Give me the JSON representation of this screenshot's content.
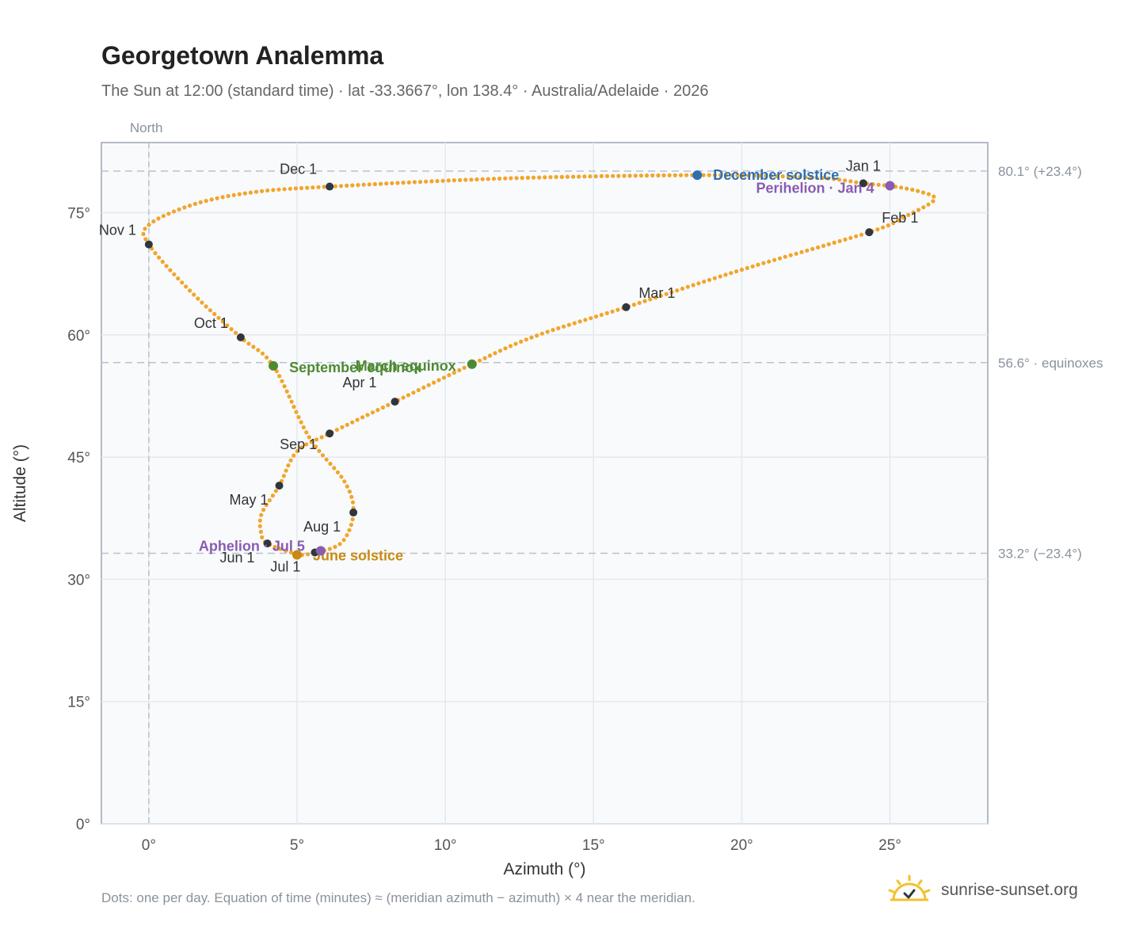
{
  "title": "Georgetown Analemma",
  "subtitle": "The Sun at 12:00 (standard time) · lat -33.3667°, lon 138.4° · Australia/Adelaide · 2026",
  "footnote": "Dots: one per day. Equation of time (minutes) ≈ (meridian azimuth − azimuth) × 4 near the meridian.",
  "brand": {
    "name": "sunrise-sunset.org",
    "icon": "sun-logo-icon"
  },
  "colors": {
    "curve": "#f2a52a",
    "month_marker": "#2f3640",
    "solstice_dec": "#2f6fb0",
    "solstice_jun": "#c98a12",
    "equinox": "#4e8a32",
    "perihelion": "#8a5cb0",
    "plot_bg": "#f8fafc",
    "grid": "#e4e9ef",
    "reference_line": "#b8c2cc"
  },
  "chart_data": {
    "type": "scatter",
    "xlabel": "Azimuth (°)",
    "ylabel": "Altitude (°)",
    "xlim": [
      -1.6,
      28.3
    ],
    "ylim": [
      0,
      83.6
    ],
    "xticks": [
      0,
      5,
      10,
      15,
      20,
      25
    ],
    "xtick_labels": [
      "0°",
      "5°",
      "10°",
      "15°",
      "20°",
      "25°"
    ],
    "yticks": [
      0,
      15,
      30,
      45,
      60,
      75
    ],
    "ytick_labels": [
      "0°",
      "15°",
      "30°",
      "45°",
      "60°",
      "75°"
    ],
    "grid": true,
    "meridian": {
      "x": 0,
      "label": "North"
    },
    "reference_lines": [
      {
        "y": 80.1,
        "label": "80.1° (+23.4°)"
      },
      {
        "y": 56.6,
        "label": "56.6° · equinoxes"
      },
      {
        "y": 33.2,
        "label": "33.2° (−23.4°)"
      }
    ],
    "analemma_path": [
      [
        25.0,
        78.3
      ],
      [
        26.0,
        77.6
      ],
      [
        26.5,
        76.6
      ],
      [
        25.5,
        74.5
      ],
      [
        24.3,
        72.6
      ],
      [
        20.0,
        68.0
      ],
      [
        16.1,
        63.4
      ],
      [
        13.0,
        59.8
      ],
      [
        10.9,
        56.4
      ],
      [
        8.3,
        51.8
      ],
      [
        6.1,
        47.9
      ],
      [
        5.0,
        45.7
      ],
      [
        4.4,
        41.5
      ],
      [
        3.8,
        38.0
      ],
      [
        3.8,
        35.5
      ],
      [
        4.0,
        34.4
      ],
      [
        5.0,
        33.1
      ],
      [
        5.5,
        33.2
      ],
      [
        6.5,
        34.5
      ],
      [
        6.9,
        38.2
      ],
      [
        6.6,
        42.0
      ],
      [
        5.4,
        47.5
      ],
      [
        4.2,
        56.2
      ],
      [
        3.1,
        59.7
      ],
      [
        1.5,
        65.0
      ],
      [
        0.0,
        71.1
      ],
      [
        0.0,
        73.5
      ],
      [
        1.5,
        76.0
      ],
      [
        3.5,
        77.5
      ],
      [
        6.1,
        78.2
      ],
      [
        12.0,
        79.2
      ],
      [
        18.5,
        79.6
      ],
      [
        22.5,
        79.3
      ],
      [
        24.1,
        78.6
      ],
      [
        25.0,
        78.3
      ]
    ],
    "month_markers": [
      {
        "label": "Jan 1",
        "x": 24.1,
        "y": 78.6
      },
      {
        "label": "Feb 1",
        "x": 24.3,
        "y": 72.6
      },
      {
        "label": "Mar 1",
        "x": 16.1,
        "y": 63.4
      },
      {
        "label": "Apr 1",
        "x": 8.3,
        "y": 51.8
      },
      {
        "label": "May 1",
        "x": 4.4,
        "y": 41.5
      },
      {
        "label": "Jun 1",
        "x": 4.0,
        "y": 34.4
      },
      {
        "label": "Jul 1",
        "x": 5.6,
        "y": 33.3
      },
      {
        "label": "Aug 1",
        "x": 6.9,
        "y": 38.2
      },
      {
        "label": "Sep 1",
        "x": 6.1,
        "y": 47.9
      },
      {
        "label": "Oct 1",
        "x": 3.1,
        "y": 59.7
      },
      {
        "label": "Nov 1",
        "x": 0.0,
        "y": 71.1
      },
      {
        "label": "Dec 1",
        "x": 6.1,
        "y": 78.2
      }
    ],
    "events": [
      {
        "label": "December solstice",
        "x": 18.5,
        "y": 79.6,
        "color": "#2f6fb0"
      },
      {
        "label": "Perihelion · Jan 4",
        "x": 25.0,
        "y": 78.3,
        "color": "#8a5cb0"
      },
      {
        "label": "March equinox",
        "x": 10.9,
        "y": 56.4,
        "color": "#4e8a32"
      },
      {
        "label": "September equinox",
        "x": 4.2,
        "y": 56.2,
        "color": "#4e8a32"
      },
      {
        "label": "June solstice",
        "x": 5.0,
        "y": 33.0,
        "color": "#c98a12"
      },
      {
        "label": "Aphelion · Jul 5",
        "x": 5.8,
        "y": 33.5,
        "color": "#8a5cb0"
      }
    ]
  }
}
